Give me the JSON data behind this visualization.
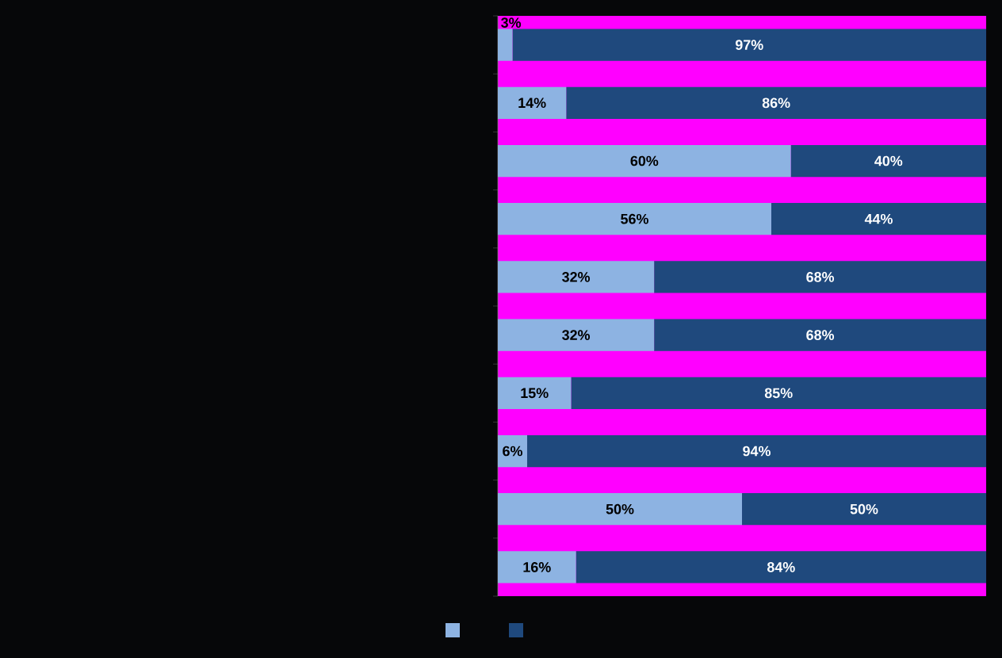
{
  "chart_data": {
    "type": "bar",
    "orientation": "horizontal",
    "stacked": true,
    "categories": [
      null,
      null,
      null,
      null,
      null,
      null,
      null,
      null,
      null,
      null
    ],
    "series": [
      {
        "color": "#8db3e2",
        "values": [
          3,
          14,
          60,
          56,
          32,
          32,
          15,
          6,
          50,
          16
        ],
        "value_labels": [
          "3%",
          "14%",
          "60%",
          "56%",
          "32%",
          "32%",
          "15%",
          "6%",
          "50%",
          "16%"
        ]
      },
      {
        "color": "#1f497d",
        "values": [
          97,
          86,
          40,
          44,
          68,
          68,
          85,
          94,
          50,
          84
        ],
        "value_labels": [
          "97%",
          "86%",
          "40%",
          "44%",
          "68%",
          "68%",
          "85%",
          "94%",
          "50%",
          "84%"
        ]
      }
    ]
  }
}
